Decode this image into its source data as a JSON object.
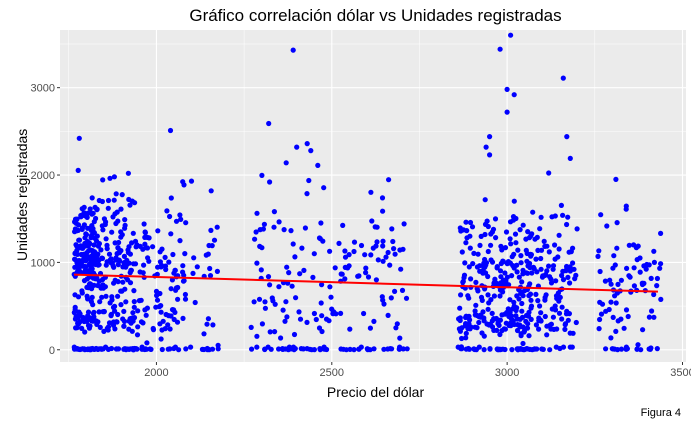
{
  "chart_data": {
    "type": "scatter",
    "title": "Gráfico correlación dólar vs Unidades registradas",
    "xlabel": "Precio del dólar",
    "ylabel": "Unidades registradas",
    "caption": "Figura 4",
    "xlim": [
      1725,
      3510
    ],
    "ylim": [
      -140,
      3660
    ],
    "x_ticks": [
      2000,
      2500,
      3000,
      3500
    ],
    "y_ticks": [
      0,
      1000,
      2000,
      3000
    ],
    "grid": true,
    "colors": {
      "points": "#0000ff",
      "trend": "#ff0000",
      "panel": "#ebebeb",
      "grid": "#ffffff"
    },
    "clusters": [
      {
        "x_range": [
          1765,
          1830
        ],
        "count": 230,
        "y_mean": 1100,
        "y_sd": 320,
        "zero_share": 0.12,
        "low_share": 0.15
      },
      {
        "x_range": [
          1830,
          1935
        ],
        "count": 180,
        "y_mean": 1050,
        "y_sd": 380,
        "zero_share": 0.12,
        "low_share": 0.15
      },
      {
        "x_range": [
          1935,
          2065
        ],
        "count": 110,
        "y_mean": 850,
        "y_sd": 420,
        "zero_share": 0.18,
        "low_share": 0.1
      },
      {
        "x_range": [
          2065,
          2180
        ],
        "count": 45,
        "y_mean": 1000,
        "y_sd": 520,
        "zero_share": 0.25,
        "low_share": 0.05
      },
      {
        "x_range": [
          2270,
          2440
        ],
        "count": 80,
        "y_mean": 950,
        "y_sd": 600,
        "zero_share": 0.22,
        "low_share": 0.05
      },
      {
        "x_range": [
          2440,
          2720
        ],
        "count": 120,
        "y_mean": 850,
        "y_sd": 380,
        "zero_share": 0.2,
        "low_share": 0.05
      },
      {
        "x_range": [
          2860,
          3080
        ],
        "count": 320,
        "y_mean": 870,
        "y_sd": 380,
        "zero_share": 0.1,
        "low_share": 0.2
      },
      {
        "x_range": [
          3080,
          3200
        ],
        "count": 110,
        "y_mean": 850,
        "y_sd": 420,
        "zero_share": 0.15,
        "low_share": 0.1
      },
      {
        "x_range": [
          3250,
          3440
        ],
        "count": 90,
        "y_mean": 850,
        "y_sd": 350,
        "zero_share": 0.2,
        "low_share": 0.05
      }
    ],
    "notable_points": [
      {
        "x": 3010,
        "y": 3600
      },
      {
        "x": 2980,
        "y": 3440
      },
      {
        "x": 2390,
        "y": 3430
      },
      {
        "x": 3160,
        "y": 3110
      },
      {
        "x": 3000,
        "y": 2980
      },
      {
        "x": 3020,
        "y": 2920
      },
      {
        "x": 3000,
        "y": 2720
      },
      {
        "x": 2320,
        "y": 2590
      },
      {
        "x": 2040,
        "y": 2510
      },
      {
        "x": 2950,
        "y": 2440
      },
      {
        "x": 3170,
        "y": 2440
      },
      {
        "x": 1780,
        "y": 2420
      },
      {
        "x": 2430,
        "y": 2360
      },
      {
        "x": 2400,
        "y": 2320
      },
      {
        "x": 2940,
        "y": 2320
      },
      {
        "x": 2950,
        "y": 2230
      },
      {
        "x": 2440,
        "y": 2280
      },
      {
        "x": 3180,
        "y": 2190
      },
      {
        "x": 2370,
        "y": 2140
      },
      {
        "x": 2460,
        "y": 2110
      },
      {
        "x": 3310,
        "y": 1950
      },
      {
        "x": 1920,
        "y": 2020
      },
      {
        "x": 1880,
        "y": 1980
      },
      {
        "x": 2100,
        "y": 1930
      },
      {
        "x": 3420,
        "y": 1000
      },
      {
        "x": 3390,
        "y": 960
      },
      {
        "x": 3410,
        "y": 20
      }
    ],
    "trend": {
      "x": [
        1765,
        3430
      ],
      "y": [
        860,
        665
      ]
    }
  }
}
